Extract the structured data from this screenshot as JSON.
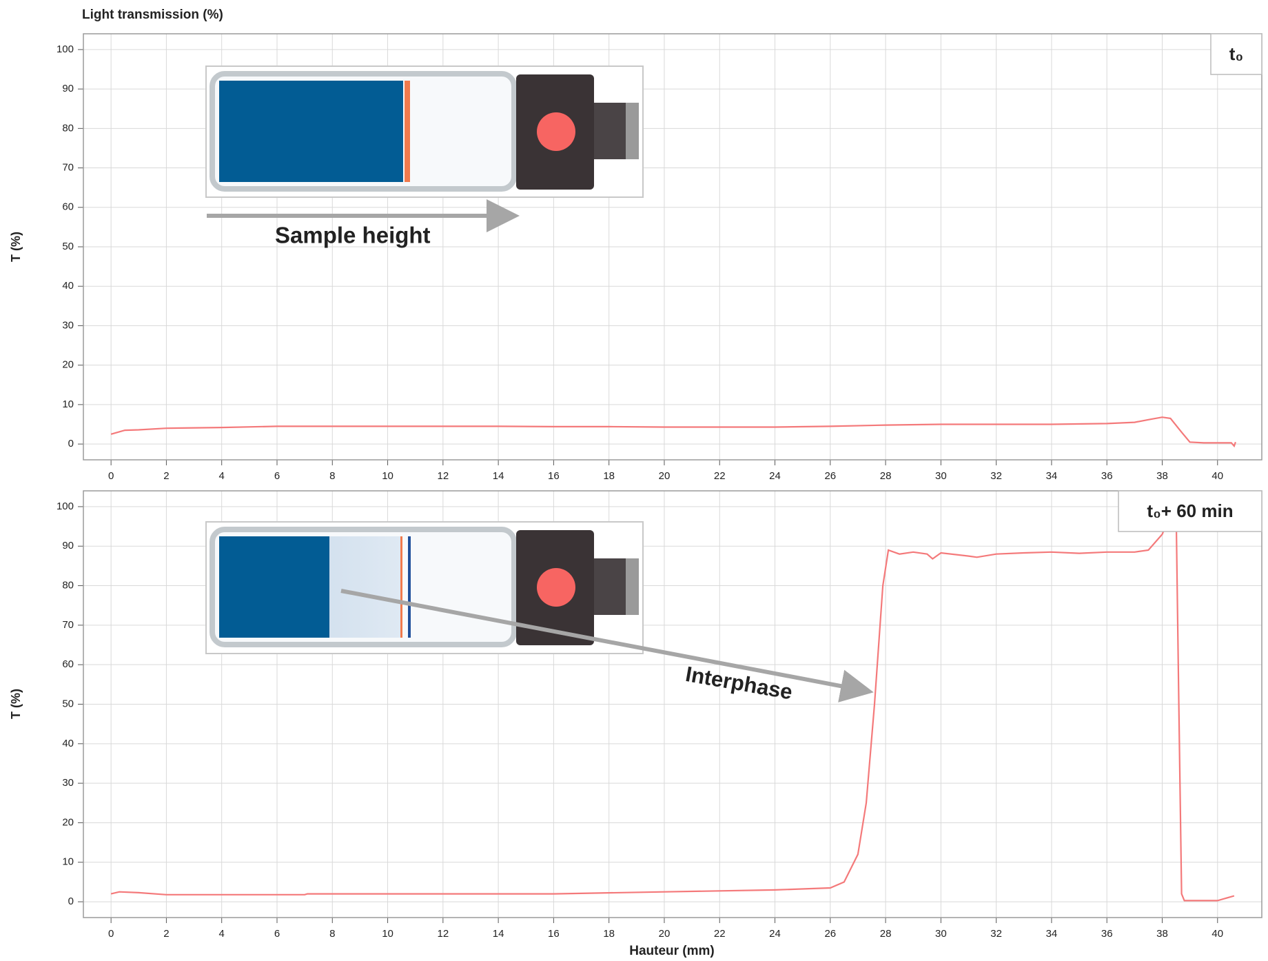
{
  "chart_data": [
    {
      "type": "line",
      "title": "Light transmission (%)",
      "y_label": "T (%)",
      "legend_label": "t₀",
      "annotation": "Sample height",
      "xlim": [
        -1,
        41.6
      ],
      "ylim": [
        -4,
        104
      ],
      "xticks": [
        0,
        2,
        4,
        6,
        8,
        10,
        12,
        14,
        16,
        18,
        20,
        22,
        24,
        26,
        28,
        30,
        32,
        34,
        36,
        38,
        40
      ],
      "yticks": [
        0,
        10,
        20,
        30,
        40,
        50,
        60,
        70,
        80,
        90,
        100
      ],
      "grid": true,
      "series": [
        {
          "color": "#f4797a",
          "x": [
            0,
            0.5,
            1,
            2,
            4,
            6,
            8,
            10,
            12,
            14,
            16,
            18,
            20,
            22,
            24,
            26,
            28,
            30,
            32,
            34,
            36,
            37,
            37.6,
            38,
            38.3,
            38.7,
            39,
            39.5,
            40,
            40.5,
            40.6,
            40.65
          ],
          "values": [
            2.5,
            3.5,
            3.6,
            4,
            4.2,
            4.5,
            4.5,
            4.5,
            4.5,
            4.5,
            4.4,
            4.4,
            4.3,
            4.3,
            4.3,
            4.5,
            4.8,
            5,
            5,
            5,
            5.2,
            5.5,
            6.3,
            6.8,
            6.5,
            3,
            0.5,
            0.3,
            0.3,
            0.3,
            -0.5,
            0.5
          ]
        }
      ]
    },
    {
      "type": "line",
      "y_label": "T (%)",
      "x_label": "Hauteur (mm)",
      "legend_label": "t₀+ 60 min",
      "annotation": "Interphase",
      "xlim": [
        -1,
        41.6
      ],
      "ylim": [
        -4,
        104
      ],
      "xticks": [
        0,
        2,
        4,
        6,
        8,
        10,
        12,
        14,
        16,
        18,
        20,
        22,
        24,
        26,
        28,
        30,
        32,
        34,
        36,
        38,
        40
      ],
      "yticks": [
        0,
        10,
        20,
        30,
        40,
        50,
        60,
        70,
        80,
        90,
        100
      ],
      "grid": true,
      "series": [
        {
          "color": "#f4797a",
          "x": [
            0,
            0.3,
            1,
            2,
            4,
            7,
            7.1,
            10,
            16,
            20,
            24,
            26,
            26.5,
            27,
            27.3,
            27.6,
            27.9,
            28.1,
            28.5,
            29,
            29.5,
            29.7,
            30,
            31,
            31.3,
            32,
            33,
            34,
            35,
            36,
            37,
            37.5,
            38,
            38.3,
            38.5,
            38.6,
            38.7,
            38.8,
            40,
            40.6
          ],
          "values": [
            2,
            2.5,
            2.3,
            1.8,
            1.8,
            1.8,
            2,
            2,
            2,
            2.5,
            3,
            3.5,
            5,
            12,
            25,
            50,
            80,
            89,
            88,
            88.5,
            88,
            86.8,
            88.3,
            87.5,
            87.2,
            88,
            88.3,
            88.5,
            88.2,
            88.5,
            88.5,
            89,
            93,
            98,
            100,
            50,
            2,
            0.3,
            0.3,
            1.5
          ]
        }
      ]
    }
  ]
}
